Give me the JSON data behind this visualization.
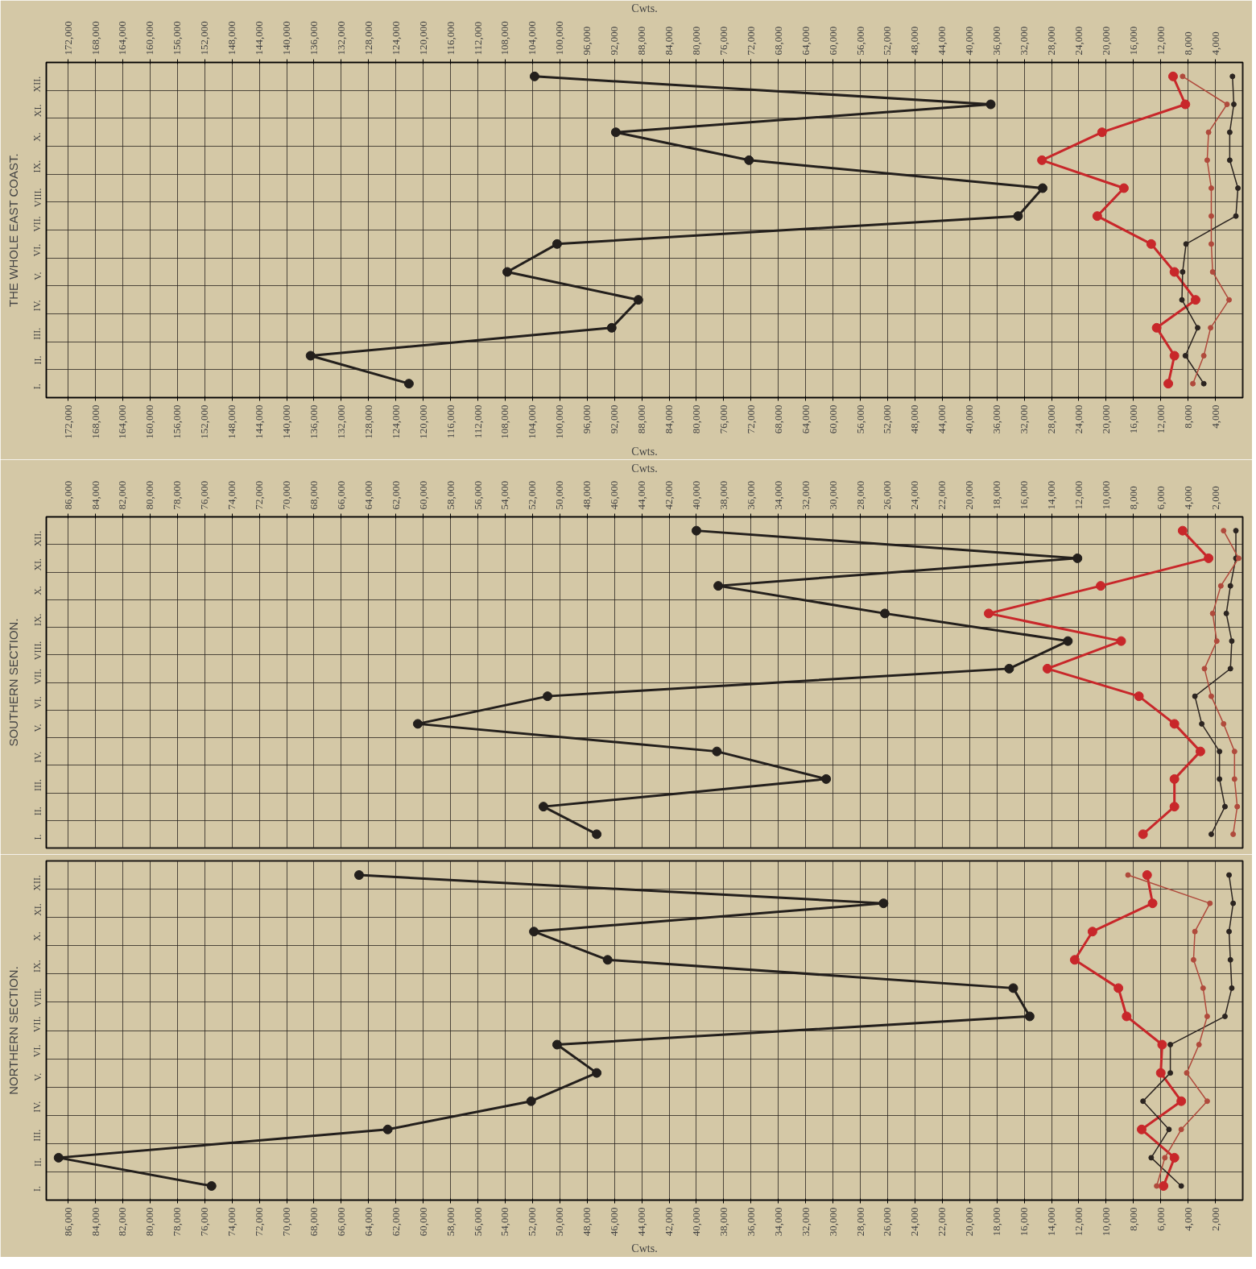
{
  "chart_data": [
    {
      "type": "line",
      "title": "THE WHOLE EAST COAST.",
      "orientation": "horizontal",
      "categories": [
        "XII.",
        "XI.",
        "X.",
        "IX.",
        "VIII.",
        "VII.",
        "VI.",
        "V.",
        "IV.",
        "III.",
        "II.",
        "I."
      ],
      "xlabel": "Cwts.",
      "x2label": "Cwts.",
      "xlim": [
        175200,
        0
      ],
      "x2lim": [
        175200,
        0
      ],
      "xticks": [
        {
          "value": 172000,
          "label": "172,000"
        },
        {
          "value": 168000,
          "label": "168,000"
        },
        {
          "value": 164000,
          "label": "164,000"
        },
        {
          "value": 160000,
          "label": "160,000"
        },
        {
          "value": 156000,
          "label": "156,000"
        },
        {
          "value": 152000,
          "label": "152,000"
        },
        {
          "value": 148000,
          "label": "148,000"
        },
        {
          "value": 144000,
          "label": "144,000"
        },
        {
          "value": 140000,
          "label": "140,000"
        },
        {
          "value": 136000,
          "label": "136,000"
        },
        {
          "value": 132000,
          "label": "132,000"
        },
        {
          "value": 128000,
          "label": "128,000"
        },
        {
          "value": 124000,
          "label": "124,000"
        },
        {
          "value": 120000,
          "label": "120,000"
        },
        {
          "value": 116000,
          "label": "116,000"
        },
        {
          "value": 112000,
          "label": "112,000"
        },
        {
          "value": 108000,
          "label": "108,000"
        },
        {
          "value": 104000,
          "label": "104,000"
        },
        {
          "value": 100000,
          "label": "100,000"
        },
        {
          "value": 96000,
          "label": "96,000"
        },
        {
          "value": 92000,
          "label": "92,000"
        },
        {
          "value": 88000,
          "label": "88,000"
        },
        {
          "value": 84000,
          "label": "84,000"
        },
        {
          "value": 80000,
          "label": "80,000"
        },
        {
          "value": 76000,
          "label": "76,000"
        },
        {
          "value": 72000,
          "label": "72,000"
        },
        {
          "value": 68000,
          "label": "68,000"
        },
        {
          "value": 64000,
          "label": "64,000"
        },
        {
          "value": 60000,
          "label": "60,000"
        },
        {
          "value": 56000,
          "label": "56,000"
        },
        {
          "value": 52000,
          "label": "52,000"
        },
        {
          "value": 48000,
          "label": "48,000"
        },
        {
          "value": 44000,
          "label": "44,000"
        },
        {
          "value": 40000,
          "label": "40,000"
        },
        {
          "value": 36000,
          "label": "36,000"
        },
        {
          "value": 32000,
          "label": "32,000"
        },
        {
          "value": 28000,
          "label": "28,000"
        },
        {
          "value": 24000,
          "label": "24,000"
        },
        {
          "value": 20000,
          "label": "20,000"
        },
        {
          "value": 16000,
          "label": "16,000"
        },
        {
          "value": 12000,
          "label": "12,000"
        },
        {
          "value": 8000,
          "label": "8,000"
        },
        {
          "value": 4000,
          "label": "4,000"
        }
      ],
      "x2ticks": [
        {
          "value": 172000,
          "label": "172,000"
        },
        {
          "value": 168000,
          "label": "168,000"
        },
        {
          "value": 164000,
          "label": "164,000"
        },
        {
          "value": 160000,
          "label": "160,000"
        },
        {
          "value": 156000,
          "label": "156,000"
        },
        {
          "value": 152000,
          "label": "152,000"
        },
        {
          "value": 148000,
          "label": "148,000"
        },
        {
          "value": 144000,
          "label": "144,000"
        },
        {
          "value": 140000,
          "label": "140,000"
        },
        {
          "value": 136000,
          "label": "136,000"
        },
        {
          "value": 132000,
          "label": "132,000"
        },
        {
          "value": 128000,
          "label": "128,000"
        },
        {
          "value": 124000,
          "label": "124,000"
        },
        {
          "value": 120000,
          "label": "120,000"
        },
        {
          "value": 116000,
          "label": "116,000"
        },
        {
          "value": 112000,
          "label": "112,000"
        },
        {
          "value": 108000,
          "label": "108,000"
        },
        {
          "value": 104000,
          "label": "104,000"
        },
        {
          "value": 100000,
          "label": "100,000"
        },
        {
          "value": 96000,
          "label": "96,000"
        },
        {
          "value": 92000,
          "label": "92,000"
        },
        {
          "value": 88000,
          "label": "88,000"
        },
        {
          "value": 84000,
          "label": "84,000"
        },
        {
          "value": 80000,
          "label": "80,000"
        },
        {
          "value": 76000,
          "label": "76,000"
        },
        {
          "value": 72000,
          "label": "72,000"
        },
        {
          "value": 68000,
          "label": "68,000"
        },
        {
          "value": 64000,
          "label": "64,000"
        },
        {
          "value": 60000,
          "label": "60,000"
        },
        {
          "value": 56000,
          "label": "56,000"
        },
        {
          "value": 52000,
          "label": "52,000"
        },
        {
          "value": 48000,
          "label": "48,000"
        },
        {
          "value": 44000,
          "label": "44,000"
        },
        {
          "value": 40000,
          "label": "40,000"
        },
        {
          "value": 36000,
          "label": "36,000"
        },
        {
          "value": 32000,
          "label": "32,000"
        },
        {
          "value": 28000,
          "label": "28,000"
        },
        {
          "value": 24000,
          "label": "24,000"
        },
        {
          "value": 20000,
          "label": "20,000"
        },
        {
          "value": 16000,
          "label": "16,000"
        },
        {
          "value": 12000,
          "label": "12,000"
        },
        {
          "value": 8000,
          "label": "8,000"
        },
        {
          "value": 4000,
          "label": "4,000"
        }
      ],
      "grid": true,
      "marker": "circle",
      "series": [
        {
          "color": "#231f1c",
          "values": [
            103700,
            36900,
            91800,
            72300,
            29300,
            32900,
            100400,
            107700,
            88500,
            92400,
            136500,
            122100
          ]
        },
        {
          "color": "#c8272a",
          "values": [
            10200,
            8400,
            20600,
            29400,
            17400,
            21300,
            13400,
            10000,
            6900,
            12600,
            10000,
            10900
          ]
        },
        {
          "color": "#2b2420",
          "values": [
            1500,
            1300,
            1900,
            1900,
            700,
            1000,
            8300,
            8800,
            8900,
            6600,
            8400,
            5700
          ]
        },
        {
          "color": "#b04a3c",
          "values": [
            8800,
            2300,
            5000,
            5200,
            4600,
            4600,
            4600,
            4400,
            2000,
            4700,
            5700,
            7300
          ]
        }
      ]
    },
    {
      "type": "line",
      "title": "SOUTHERN SECTION.",
      "orientation": "horizontal",
      "categories": [
        "XII.",
        "XI.",
        "X.",
        "IX.",
        "VIII.",
        "VII.",
        "VI.",
        "V.",
        "IV.",
        "III.",
        "II.",
        "I."
      ],
      "xlabel": "Cwts.",
      "xlim": [
        87600,
        0
      ],
      "xticks": [
        {
          "value": 86000,
          "label": "86,000"
        },
        {
          "value": 84000,
          "label": "84,000"
        },
        {
          "value": 82000,
          "label": "82,000"
        },
        {
          "value": 80000,
          "label": "80,000"
        },
        {
          "value": 78000,
          "label": "78,000"
        },
        {
          "value": 76000,
          "label": "76,000"
        },
        {
          "value": 74000,
          "label": "74,000"
        },
        {
          "value": 72000,
          "label": "72,000"
        },
        {
          "value": 70000,
          "label": "70,000"
        },
        {
          "value": 68000,
          "label": "68,000"
        },
        {
          "value": 66000,
          "label": "66,000"
        },
        {
          "value": 64000,
          "label": "64,000"
        },
        {
          "value": 62000,
          "label": "62,000"
        },
        {
          "value": 60000,
          "label": "60,000"
        },
        {
          "value": 58000,
          "label": "58,000"
        },
        {
          "value": 56000,
          "label": "56,000"
        },
        {
          "value": 54000,
          "label": "54,000"
        },
        {
          "value": 52000,
          "label": "52,000"
        },
        {
          "value": 50000,
          "label": "50,000"
        },
        {
          "value": 48000,
          "label": "48,000"
        },
        {
          "value": 46000,
          "label": "46,000"
        },
        {
          "value": 44000,
          "label": "44,000"
        },
        {
          "value": 42000,
          "label": "42,000"
        },
        {
          "value": 40000,
          "label": "40,000"
        },
        {
          "value": 38000,
          "label": "38,000"
        },
        {
          "value": 36000,
          "label": "36,000"
        },
        {
          "value": 34000,
          "label": "34,000"
        },
        {
          "value": 32000,
          "label": "32,000"
        },
        {
          "value": 30000,
          "label": "30,000"
        },
        {
          "value": 28000,
          "label": "28,000"
        },
        {
          "value": 26000,
          "label": "26,000"
        },
        {
          "value": 24000,
          "label": "24,000"
        },
        {
          "value": 22000,
          "label": "22,000"
        },
        {
          "value": 20000,
          "label": "20,000"
        },
        {
          "value": 18000,
          "label": "18,000"
        },
        {
          "value": 16000,
          "label": "16,000"
        },
        {
          "value": 14000,
          "label": "14,000"
        },
        {
          "value": 12000,
          "label": "12,000"
        },
        {
          "value": 10000,
          "label": "10,000"
        },
        {
          "value": 8000,
          "label": "8,000"
        },
        {
          "value": 6000,
          "label": "6,000"
        },
        {
          "value": 4000,
          "label": "4,000"
        },
        {
          "value": 2000,
          "label": "2,000"
        }
      ],
      "grid": true,
      "marker": "circle",
      "series": [
        {
          "color": "#231f1c",
          "values": [
            40000,
            12100,
            38400,
            26200,
            12800,
            17100,
            50900,
            60400,
            38500,
            30500,
            51200,
            47300
          ]
        },
        {
          "color": "#c8272a",
          "values": [
            4400,
            2500,
            10400,
            18600,
            8900,
            14300,
            7600,
            5000,
            3100,
            5000,
            5000,
            7300
          ]
        },
        {
          "color": "#2b2420",
          "values": [
            500,
            500,
            900,
            1200,
            800,
            900,
            3500,
            3000,
            1700,
            1700,
            1300,
            2300
          ]
        },
        {
          "color": "#b04a3c",
          "values": [
            1400,
            300,
            1600,
            2200,
            1900,
            2800,
            2300,
            1400,
            600,
            600,
            400,
            700
          ]
        }
      ]
    },
    {
      "type": "line",
      "title": "NORTHERN SECTION.",
      "orientation": "horizontal",
      "categories": [
        "XII.",
        "XI.",
        "X.",
        "IX.",
        "VIII.",
        "VII.",
        "VI.",
        "V.",
        "IV.",
        "III.",
        "II.",
        "I."
      ],
      "xlabel": "Cwts.",
      "xlim": [
        87600,
        0
      ],
      "xticks": [
        {
          "value": 86000,
          "label": "86,000"
        },
        {
          "value": 84000,
          "label": "84,000"
        },
        {
          "value": 82000,
          "label": "82,000"
        },
        {
          "value": 80000,
          "label": "80,000"
        },
        {
          "value": 78000,
          "label": "78,000"
        },
        {
          "value": 76000,
          "label": "76,000"
        },
        {
          "value": 74000,
          "label": "74,000"
        },
        {
          "value": 72000,
          "label": "72,000"
        },
        {
          "value": 70000,
          "label": "70,000"
        },
        {
          "value": 68000,
          "label": "68,000"
        },
        {
          "value": 66000,
          "label": "66,000"
        },
        {
          "value": 64000,
          "label": "64,000"
        },
        {
          "value": 62000,
          "label": "62,000"
        },
        {
          "value": 60000,
          "label": "60,000"
        },
        {
          "value": 58000,
          "label": "58,000"
        },
        {
          "value": 56000,
          "label": "56,000"
        },
        {
          "value": 54000,
          "label": "54,000"
        },
        {
          "value": 52000,
          "label": "52,000"
        },
        {
          "value": 50000,
          "label": "50,000"
        },
        {
          "value": 48000,
          "label": "48,000"
        },
        {
          "value": 46000,
          "label": "46,000"
        },
        {
          "value": 44000,
          "label": "44,000"
        },
        {
          "value": 42000,
          "label": "42,000"
        },
        {
          "value": 40000,
          "label": "40,000"
        },
        {
          "value": 38000,
          "label": "38,000"
        },
        {
          "value": 36000,
          "label": "36,000"
        },
        {
          "value": 34000,
          "label": "34,000"
        },
        {
          "value": 32000,
          "label": "32,000"
        },
        {
          "value": 30000,
          "label": "30,000"
        },
        {
          "value": 28000,
          "label": "28,000"
        },
        {
          "value": 26000,
          "label": "26,000"
        },
        {
          "value": 24000,
          "label": "24,000"
        },
        {
          "value": 22000,
          "label": "22,000"
        },
        {
          "value": 20000,
          "label": "20,000"
        },
        {
          "value": 18000,
          "label": "18,000"
        },
        {
          "value": 16000,
          "label": "16,000"
        },
        {
          "value": 14000,
          "label": "14,000"
        },
        {
          "value": 12000,
          "label": "12,000"
        },
        {
          "value": 10000,
          "label": "10,000"
        },
        {
          "value": 8000,
          "label": "8,000"
        },
        {
          "value": 6000,
          "label": "6,000"
        },
        {
          "value": 4000,
          "label": "4,000"
        },
        {
          "value": 2000,
          "label": "2,000"
        }
      ],
      "grid": true,
      "marker": "circle",
      "series": [
        {
          "color": "#231f1c",
          "values": [
            64700,
            26300,
            51900,
            46500,
            16800,
            15600,
            50200,
            47300,
            52100,
            62600,
            86700,
            75500
          ]
        },
        {
          "color": "#c8272a",
          "values": [
            7000,
            6600,
            11000,
            12300,
            9100,
            8500,
            5900,
            6000,
            4500,
            7400,
            5000,
            5800
          ]
        },
        {
          "color": "#2b2420",
          "values": [
            1000,
            700,
            1000,
            900,
            800,
            1300,
            5300,
            5300,
            7300,
            5400,
            6700,
            4500
          ]
        },
        {
          "color": "#b04a3c",
          "values": [
            8400,
            2400,
            3500,
            3600,
            2900,
            2600,
            3200,
            4100,
            2600,
            4500,
            5700,
            6300
          ]
        }
      ]
    }
  ]
}
